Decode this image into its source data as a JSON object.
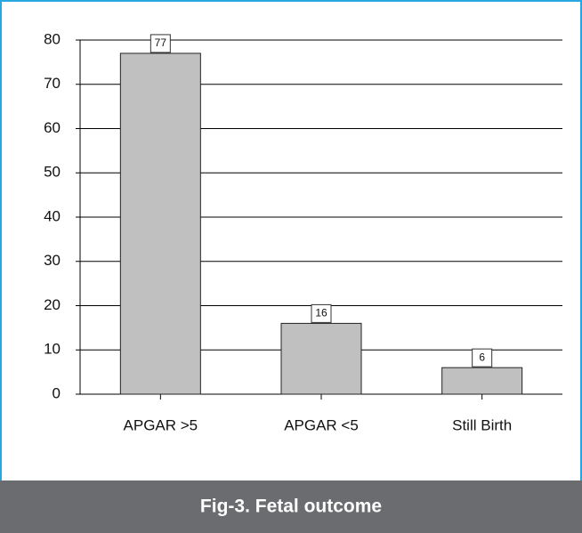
{
  "chart_data": {
    "type": "bar",
    "title": "Fig-3. Fetal outcome",
    "categories": [
      "APGAR >5",
      "APGAR <5",
      "Still Birth"
    ],
    "values": [
      77,
      16,
      6
    ],
    "color": "#c0c0c0",
    "ylim": [
      0,
      80
    ],
    "yticks": [
      0,
      10,
      20,
      30,
      40,
      50,
      60,
      70,
      80
    ],
    "grid": true
  }
}
